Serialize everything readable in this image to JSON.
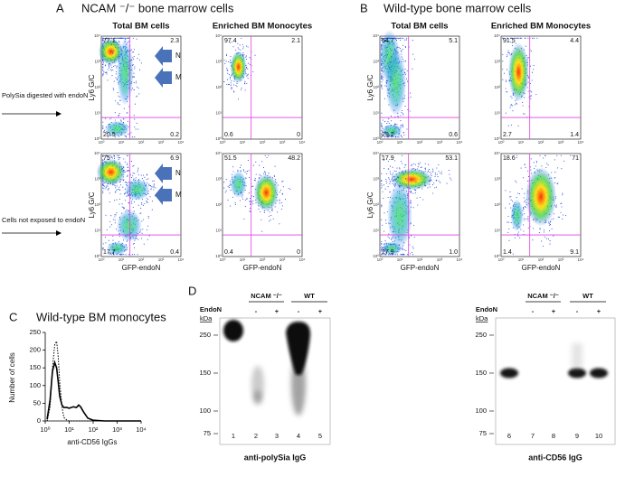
{
  "figure": {
    "panel_a": {
      "letter": "A",
      "title": "NCAM ⁻/⁻ bone marrow cells",
      "columns": [
        "Total BM cells",
        "Enriched BM Monocytes"
      ]
    },
    "panel_b": {
      "letter": "B",
      "title": "Wild-type bone marrow cells",
      "columns": [
        "Total BM cells",
        "Enriched BM Monocytes"
      ]
    },
    "row_labels": [
      "PolySia digested with endoN",
      "Cells not exposed to endoN"
    ],
    "y_axis_label": "Ly6 G/C",
    "x_axis_label": "GFP-endoN",
    "arrows": [
      "N",
      "M"
    ],
    "flow_ticks": [
      "10⁰",
      "10¹",
      "10²",
      "10³",
      "10⁴"
    ],
    "quadrants": [
      [
        [
          "77.1",
          "2.3",
          "20.5",
          "0.2"
        ],
        [
          "97.4",
          "2.1",
          "0.6",
          "0"
        ],
        [
          "64.7",
          "5.1",
          "29.2",
          "0.6"
        ],
        [
          "91.5",
          "4.4",
          "2.7",
          "1.4"
        ]
      ],
      [
        [
          "75",
          "6.9",
          "17.7",
          "0.4"
        ],
        [
          "51.5",
          "48.2",
          "0.4",
          "0"
        ],
        [
          "17.9",
          "53.1",
          "27.9",
          "1.0"
        ],
        [
          "18.6",
          "71",
          "1.4",
          "9.1"
        ]
      ]
    ],
    "panel_c": {
      "letter": "C",
      "title": "Wild-type BM monocytes"
    },
    "panel_d": {
      "letter": "D",
      "groups": [
        "NCAM ⁻/⁻",
        "WT"
      ],
      "treatment_label": "EndoN",
      "treatment": [
        "-",
        "+",
        "-",
        "+"
      ],
      "kda_label": "kDa",
      "kda": [
        "250",
        "150",
        "100",
        "75"
      ],
      "blots": [
        {
          "lanes": [
            "1",
            "2",
            "3",
            "4",
            "5"
          ],
          "caption": "anti-polySia IgG"
        },
        {
          "lanes": [
            "6",
            "7",
            "8",
            "9",
            "10"
          ],
          "caption": "anti-CD56 IgG"
        }
      ]
    }
  },
  "chart_data": {
    "type": "line",
    "x_label": "anti-CD56 IgGs",
    "y_label": "Number of cells",
    "xscale": "log",
    "xlim": [
      1,
      10000
    ],
    "xticks": [
      {
        "value": 1,
        "label": "10⁰"
      },
      {
        "value": 10,
        "label": "10¹"
      },
      {
        "value": 100,
        "label": "10²"
      },
      {
        "value": 1000,
        "label": "10³"
      },
      {
        "value": 10000,
        "label": "10⁴"
      }
    ],
    "ylim": [
      0,
      250
    ],
    "yticks": [
      0,
      50,
      100,
      150,
      200,
      250
    ],
    "x": [
      1.2,
      1.6,
      2,
      2.5,
      3,
      3.5,
      4,
      5,
      6,
      8,
      10,
      15,
      20,
      25,
      30,
      40,
      60,
      100,
      300,
      1000,
      10000
    ],
    "series": [
      {
        "color": "#000000",
        "style": "solid",
        "values": [
          5,
          60,
          140,
          165,
          150,
          110,
          70,
          45,
          38,
          38,
          36,
          40,
          38,
          45,
          40,
          25,
          8,
          2,
          0,
          0,
          0
        ]
      },
      {
        "color": "#000000",
        "style": "dotted",
        "values": [
          0,
          40,
          150,
          215,
          225,
          180,
          110,
          40,
          10,
          2,
          0,
          0,
          0,
          0,
          0,
          0,
          0,
          0,
          0,
          0,
          0
        ]
      }
    ]
  }
}
